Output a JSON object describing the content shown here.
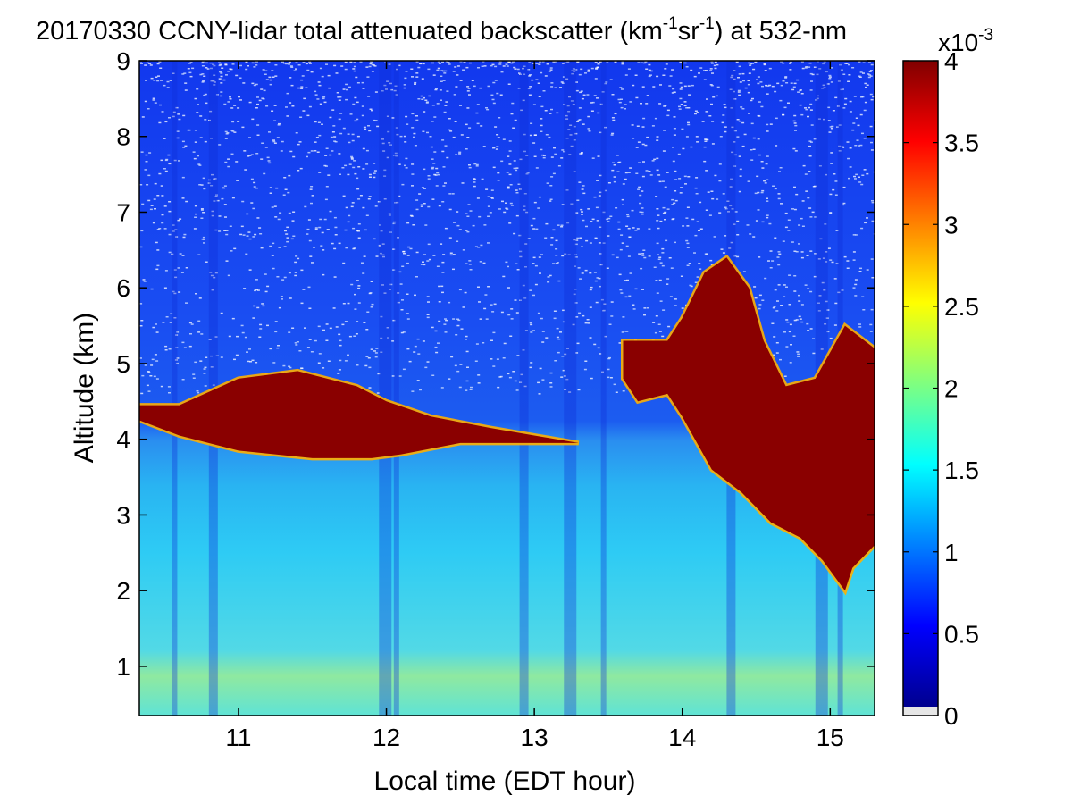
{
  "chart_data": {
    "type": "heatmap",
    "title": {
      "date": "20170330",
      "text_before_unit": "CCNY-lidar total attenuated backscatter (km",
      "unit_exp1": "-1",
      "unit_mid": "sr",
      "unit_exp2": "-1",
      "text_after_unit": ") at 532-nm"
    },
    "xlabel": "Local time (EDT hour)",
    "ylabel": "Altitude (km)",
    "xlim": [
      10.33,
      15.3
    ],
    "ylim": [
      0.35,
      9
    ],
    "xticks": [
      "11",
      "12",
      "13",
      "14",
      "15"
    ],
    "xtick_values": [
      11,
      12,
      13,
      14,
      15
    ],
    "yticks": [
      "1",
      "2",
      "3",
      "4",
      "5",
      "6",
      "7",
      "8",
      "9"
    ],
    "ytick_values": [
      1,
      2,
      3,
      4,
      5,
      6,
      7,
      8,
      9
    ],
    "colorbar": {
      "colormap": "jet",
      "clim": [
        0,
        0.004
      ],
      "ticks": [
        "0",
        "0.5",
        "1",
        "1.5",
        "2",
        "2.5",
        "3",
        "3.5",
        "4"
      ],
      "tick_values": [
        0,
        0.5,
        1,
        1.5,
        2,
        2.5,
        3,
        3.5,
        4
      ],
      "scale_base": "x10",
      "scale_exp": "-3",
      "nodata_color": "#e6e6e6"
    },
    "features": {
      "cloud_layer_low": {
        "x": [
          10.33,
          13.3
        ],
        "altitude_km": [
          3.7,
          4.9
        ]
      },
      "cloud_layer_late": {
        "x": [
          13.6,
          15.3
        ],
        "altitude_km": [
          2.0,
          6.4
        ]
      },
      "boundary_layer_top_km": 4.0,
      "aerosol_peak_altitude_km": [
        0.4,
        1.0
      ]
    }
  }
}
